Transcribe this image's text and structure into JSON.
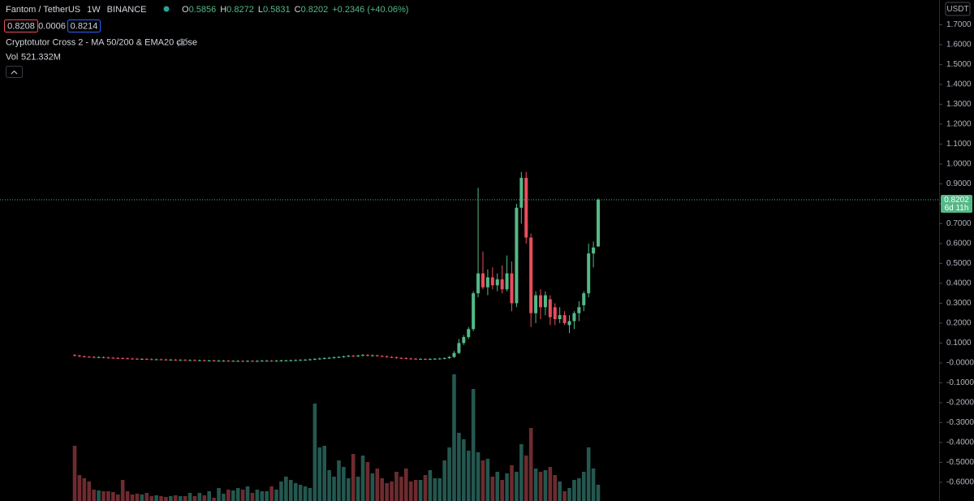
{
  "chart_data": {
    "type": "candlestick",
    "symbol": "Fantom / TetherUS",
    "interval": "1W",
    "exchange": "BINANCE",
    "ohlc_labels": [
      "O",
      "H",
      "L",
      "C"
    ],
    "change": "+0.2346 (+40.06%)",
    "bid": 0.8208,
    "spread": 0.0006,
    "ask": 0.8214,
    "indicator": "Cryptotutor Cross 2 - MA 50/200 & EMA20 close",
    "volume_title": "Vol",
    "volume_value_label": "521.332M",
    "currency": "USDT",
    "countdown": "6d 11h",
    "up_color": "#53b987",
    "down_color": "#eb4d5c",
    "volume_up_color": "#24574f",
    "volume_down_color": "#6e2b2f",
    "open": [
      0.04,
      0.037,
      0.033,
      0.031,
      0.03,
      0.028,
      0.029,
      0.027,
      0.026,
      0.025,
      0.024,
      0.023,
      0.022,
      0.021,
      0.02,
      0.02,
      0.019,
      0.018,
      0.018,
      0.017,
      0.016,
      0.016,
      0.015,
      0.015,
      0.014,
      0.014,
      0.013,
      0.013,
      0.012,
      0.012,
      0.011,
      0.011,
      0.011,
      0.01,
      0.01,
      0.01,
      0.009,
      0.01,
      0.009,
      0.01,
      0.011,
      0.011,
      0.01,
      0.011,
      0.012,
      0.012,
      0.013,
      0.014,
      0.015,
      0.016,
      0.018,
      0.02,
      0.022,
      0.024,
      0.026,
      0.028,
      0.03,
      0.033,
      0.036,
      0.034,
      0.037,
      0.04,
      0.036,
      0.038,
      0.035,
      0.033,
      0.03,
      0.028,
      0.025,
      0.024,
      0.022,
      0.021,
      0.02,
      0.02,
      0.019,
      0.02,
      0.021,
      0.022,
      0.024,
      0.03,
      0.05,
      0.1,
      0.13,
      0.17,
      0.35,
      0.45,
      0.38,
      0.43,
      0.39,
      0.42,
      0.37,
      0.45,
      0.3,
      0.78,
      0.93,
      0.63,
      0.25,
      0.34,
      0.28,
      0.32,
      0.28,
      0.22,
      0.24,
      0.19,
      0.21,
      0.25,
      0.29,
      0.35,
      0.55,
      0.5856
    ],
    "high": [
      0.044,
      0.041,
      0.037,
      0.035,
      0.034,
      0.033,
      0.033,
      0.031,
      0.03,
      0.029,
      0.028,
      0.027,
      0.026,
      0.025,
      0.024,
      0.024,
      0.023,
      0.022,
      0.022,
      0.021,
      0.02,
      0.02,
      0.019,
      0.019,
      0.018,
      0.018,
      0.017,
      0.017,
      0.016,
      0.016,
      0.015,
      0.015,
      0.015,
      0.014,
      0.014,
      0.014,
      0.014,
      0.014,
      0.014,
      0.015,
      0.015,
      0.015,
      0.015,
      0.016,
      0.016,
      0.017,
      0.018,
      0.019,
      0.02,
      0.022,
      0.024,
      0.026,
      0.028,
      0.03,
      0.032,
      0.034,
      0.037,
      0.04,
      0.04,
      0.041,
      0.044,
      0.044,
      0.042,
      0.042,
      0.039,
      0.037,
      0.034,
      0.032,
      0.029,
      0.028,
      0.026,
      0.025,
      0.024,
      0.024,
      0.024,
      0.025,
      0.026,
      0.028,
      0.034,
      0.06,
      0.12,
      0.14,
      0.18,
      0.36,
      0.88,
      0.56,
      0.47,
      0.48,
      0.45,
      0.49,
      0.54,
      0.51,
      0.8,
      0.96,
      0.96,
      0.65,
      0.36,
      0.37,
      0.36,
      0.34,
      0.3,
      0.28,
      0.26,
      0.24,
      0.26,
      0.31,
      0.36,
      0.6,
      0.61,
      0.8272
    ],
    "low": [
      0.033,
      0.029,
      0.027,
      0.026,
      0.024,
      0.024,
      0.023,
      0.022,
      0.021,
      0.02,
      0.019,
      0.018,
      0.017,
      0.016,
      0.016,
      0.015,
      0.014,
      0.014,
      0.013,
      0.012,
      0.012,
      0.011,
      0.011,
      0.01,
      0.01,
      0.009,
      0.009,
      0.008,
      0.008,
      0.007,
      0.007,
      0.007,
      0.006,
      0.006,
      0.006,
      0.005,
      0.005,
      0.005,
      0.005,
      0.006,
      0.007,
      0.006,
      0.006,
      0.007,
      0.008,
      0.008,
      0.009,
      0.01,
      0.011,
      0.012,
      0.014,
      0.016,
      0.018,
      0.02,
      0.022,
      0.024,
      0.026,
      0.029,
      0.03,
      0.03,
      0.033,
      0.032,
      0.032,
      0.031,
      0.029,
      0.026,
      0.024,
      0.021,
      0.02,
      0.018,
      0.017,
      0.016,
      0.016,
      0.015,
      0.015,
      0.016,
      0.017,
      0.018,
      0.02,
      0.025,
      0.045,
      0.09,
      0.12,
      0.16,
      0.33,
      0.37,
      0.34,
      0.37,
      0.36,
      0.35,
      0.36,
      0.26,
      0.28,
      0.7,
      0.6,
      0.18,
      0.2,
      0.22,
      0.24,
      0.19,
      0.19,
      0.2,
      0.19,
      0.15,
      0.17,
      0.21,
      0.26,
      0.33,
      0.48,
      0.5831
    ],
    "close": [
      0.037,
      0.033,
      0.031,
      0.03,
      0.028,
      0.029,
      0.027,
      0.026,
      0.025,
      0.024,
      0.023,
      0.022,
      0.021,
      0.02,
      0.02,
      0.019,
      0.018,
      0.018,
      0.017,
      0.016,
      0.016,
      0.015,
      0.015,
      0.014,
      0.014,
      0.013,
      0.013,
      0.012,
      0.012,
      0.011,
      0.011,
      0.011,
      0.01,
      0.01,
      0.01,
      0.009,
      0.01,
      0.009,
      0.01,
      0.011,
      0.011,
      0.01,
      0.011,
      0.012,
      0.012,
      0.013,
      0.014,
      0.015,
      0.016,
      0.018,
      0.02,
      0.022,
      0.024,
      0.026,
      0.028,
      0.03,
      0.033,
      0.036,
      0.034,
      0.037,
      0.04,
      0.036,
      0.038,
      0.035,
      0.033,
      0.03,
      0.028,
      0.025,
      0.024,
      0.022,
      0.021,
      0.02,
      0.02,
      0.019,
      0.02,
      0.021,
      0.022,
      0.024,
      0.03,
      0.05,
      0.1,
      0.13,
      0.17,
      0.35,
      0.45,
      0.38,
      0.43,
      0.39,
      0.42,
      0.37,
      0.45,
      0.3,
      0.78,
      0.93,
      0.63,
      0.25,
      0.34,
      0.28,
      0.34,
      0.23,
      0.22,
      0.24,
      0.2,
      0.21,
      0.25,
      0.28,
      0.35,
      0.55,
      0.58,
      0.8202
    ],
    "volume": [
      1768,
      832,
      728,
      624,
      364,
      338,
      312,
      312,
      286,
      208,
      676,
      312,
      208,
      234,
      208,
      260,
      156,
      182,
      156,
      130,
      156,
      182,
      156,
      156,
      260,
      156,
      260,
      182,
      312,
      104,
      416,
      234,
      364,
      338,
      416,
      364,
      468,
      260,
      364,
      312,
      312,
      468,
      364,
      624,
      780,
      676,
      572,
      520,
      468,
      416,
      3120,
      1716,
      1768,
      988,
      780,
      1300,
      1092,
      728,
      1508,
      780,
      1456,
      1248,
      884,
      1040,
      728,
      572,
      624,
      936,
      780,
      1040,
      624,
      676,
      676,
      832,
      988,
      728,
      728,
      1300,
      1716,
      4056,
      2184,
      1976,
      1612,
      3588,
      1560,
      1300,
      1352,
      780,
      936,
      676,
      884,
      1144,
      936,
      1820,
      1456,
      2340,
      1040,
      936,
      988,
      1092,
      832,
      624,
      312,
      416,
      676,
      728,
      936,
      1716,
      1040,
      521.332
    ],
    "ylim": [
      -0.694,
      1.824
    ],
    "yticks": [
      {
        "value": 1.7,
        "label": "1.7000"
      },
      {
        "value": 1.6,
        "label": "1.6000"
      },
      {
        "value": 1.5,
        "label": "1.5000"
      },
      {
        "value": 1.4,
        "label": "1.4000"
      },
      {
        "value": 1.3,
        "label": "1.3000"
      },
      {
        "value": 1.2,
        "label": "1.2000"
      },
      {
        "value": 1.1,
        "label": "1.1000"
      },
      {
        "value": 1,
        "label": "1.0000"
      },
      {
        "value": 0.9,
        "label": "0.9000"
      },
      {
        "value": 0.8,
        "label": "0.8000"
      },
      {
        "value": 0.7,
        "label": "0.7000"
      },
      {
        "value": 0.6,
        "label": "0.6000"
      },
      {
        "value": 0.5,
        "label": "0.5000"
      },
      {
        "value": 0.4,
        "label": "0.4000"
      },
      {
        "value": 0.3,
        "label": "0.3000"
      },
      {
        "value": 0.2,
        "label": "0.2000"
      },
      {
        "value": 0.1,
        "label": "0.1000"
      },
      {
        "value": 0,
        "label": "-0.0000"
      },
      {
        "value": -0.1,
        "label": "-0.1000"
      },
      {
        "value": -0.2,
        "label": "-0.2000"
      },
      {
        "value": -0.3,
        "label": "-0.3000"
      },
      {
        "value": -0.4,
        "label": "-0.4000"
      },
      {
        "value": -0.5,
        "label": "-0.5000"
      },
      {
        "value": -0.6,
        "label": "-0.6000"
      }
    ]
  }
}
